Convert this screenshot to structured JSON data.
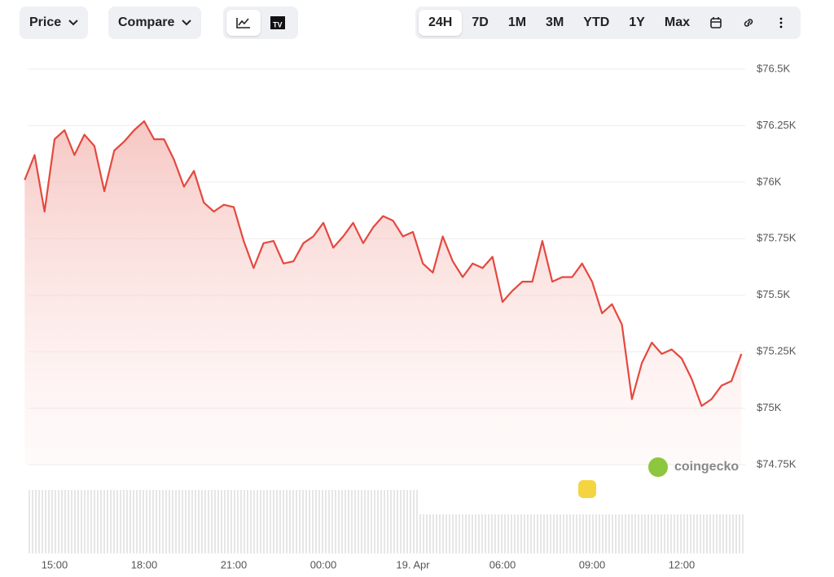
{
  "toolbar": {
    "price": "Price",
    "compare": "Compare",
    "ranges": [
      "24H",
      "7D",
      "1M",
      "3M",
      "YTD",
      "1Y",
      "Max"
    ],
    "active_range": "24H"
  },
  "watermark": "coingecko",
  "chart_data": {
    "type": "line",
    "categories": [
      null,
      null,
      null,
      "15:00",
      null,
      null,
      null,
      null,
      null,
      null,
      null,
      null,
      "18:00",
      null,
      null,
      null,
      null,
      null,
      null,
      null,
      null,
      "21:00",
      null,
      null,
      null,
      null,
      null,
      null,
      null,
      null,
      "00:00",
      null,
      null,
      null,
      null,
      null,
      null,
      null,
      null,
      "19. Apr",
      null,
      null,
      null,
      null,
      null,
      null,
      null,
      null,
      "06:00",
      null,
      null,
      null,
      null,
      null,
      null,
      null,
      null,
      "09:00",
      null,
      null,
      null,
      null,
      null,
      null,
      null,
      null,
      "12:00",
      null,
      null,
      null,
      null,
      null,
      null
    ],
    "series": [
      {
        "name": "Price",
        "color": "#e5483f",
        "values": [
          76010,
          76120,
          75870,
          76190,
          76230,
          76120,
          76210,
          76160,
          75960,
          76140,
          76180,
          76230,
          76270,
          76190,
          76190,
          76100,
          75980,
          76050,
          75910,
          75870,
          75900,
          75890,
          75740,
          75620,
          75730,
          75740,
          75640,
          75650,
          75730,
          75760,
          75820,
          75710,
          75760,
          75820,
          75730,
          75800,
          75850,
          75830,
          75760,
          75780,
          75640,
          75600,
          75760,
          75650,
          75580,
          75640,
          75620,
          75670,
          75470,
          75520,
          75560,
          75560,
          75740,
          75560,
          75580,
          75580,
          75640,
          75560,
          75420,
          75460,
          75370,
          75040,
          75200,
          75290,
          75240,
          75260,
          75220,
          75130,
          75010,
          75040,
          75100,
          75120,
          75240
        ]
      }
    ],
    "ylim": [
      74750,
      76500
    ],
    "yticks": [
      {
        "value": 74750,
        "label": "$74.75K"
      },
      {
        "value": 75000,
        "label": "$75K"
      },
      {
        "value": 75250,
        "label": "$75.25K"
      },
      {
        "value": 75500,
        "label": "$75.5K"
      },
      {
        "value": 75750,
        "label": "$75.75K"
      },
      {
        "value": 76000,
        "label": "$76K"
      },
      {
        "value": 76250,
        "label": "$76.25K"
      },
      {
        "value": 76500,
        "label": "$76.5K"
      }
    ],
    "grid": true
  }
}
